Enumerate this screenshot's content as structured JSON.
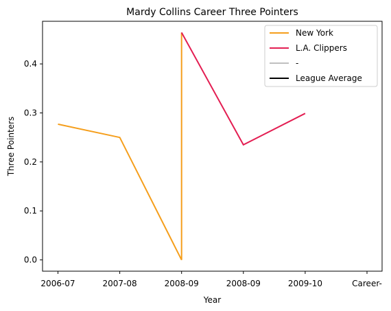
{
  "chart_data": {
    "type": "line",
    "title": "Mardy Collins Career Three Pointers",
    "xlabel": "Year",
    "ylabel": "Three Pointers",
    "categories": [
      "2006-07",
      "2007-08",
      "2008-09",
      "2008-09",
      "2009-10",
      "Career-"
    ],
    "ylim": [
      -0.023,
      0.487
    ],
    "yticks": [
      0.0,
      0.1,
      0.2,
      0.3,
      0.4
    ],
    "ytick_labels": [
      "0.0",
      "0.1",
      "0.2",
      "0.3",
      "0.4"
    ],
    "grid": false,
    "legend_position": "top-right",
    "series": [
      {
        "name": "New York",
        "color": "#f59e1b",
        "points": [
          {
            "x": 0.0,
            "y": 0.277
          },
          {
            "x": 1.0,
            "y": 0.25
          },
          {
            "x": 2.0,
            "y": 0.0
          },
          {
            "x": 2.0,
            "y": 0.464
          }
        ]
      },
      {
        "name": "L.A. Clippers",
        "color": "#e31e52",
        "points": [
          {
            "x": 2.0,
            "y": 0.464
          },
          {
            "x": 3.0,
            "y": 0.235
          },
          {
            "x": 4.0,
            "y": 0.299
          }
        ]
      },
      {
        "name": "-",
        "color": "#bfbfbf",
        "points": []
      },
      {
        "name": "League Average",
        "color": "#000000",
        "points": []
      }
    ]
  }
}
